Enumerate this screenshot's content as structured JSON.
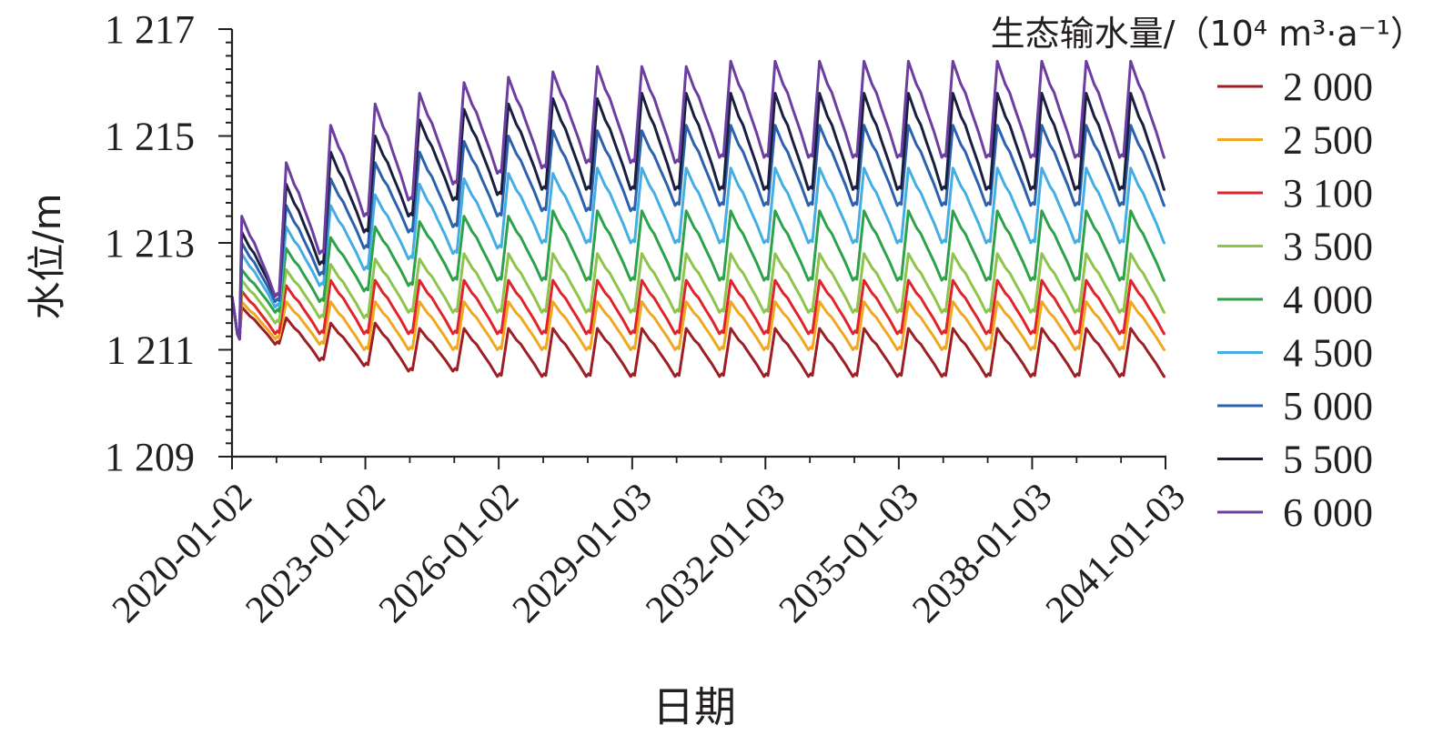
{
  "chart_data": {
    "type": "line",
    "xlabel": "日期",
    "ylabel": "水位/m",
    "legend_title": "生态输水量/（10⁴ m³·a⁻¹）",
    "legend_position": "right",
    "grid": false,
    "x_range": [
      "2020-01-02",
      "2041-01-03"
    ],
    "ylim": [
      1209,
      1217
    ],
    "x_ticks": [
      "2020-01-02",
      "2023-01-02",
      "2026-01-02",
      "2029-01-03",
      "2032-01-03",
      "2035-01-03",
      "2038-01-03",
      "2041-01-03"
    ],
    "y_ticks": [
      "1 209",
      "1 211",
      "1 213",
      "1 215",
      "1 217"
    ],
    "y_tick_values": [
      1209,
      1211,
      1213,
      1215,
      1217
    ],
    "start_level": 1212.0,
    "series": [
      {
        "name": "2 000",
        "color": "#9e1f23",
        "peak": [
          1211.8,
          1211.6,
          1211.5,
          1211.5,
          1211.4,
          1211.4,
          1211.4,
          1211.4,
          1211.4,
          1211.4,
          1211.4,
          1211.4,
          1211.4,
          1211.4,
          1211.4,
          1211.4,
          1211.4,
          1211.4,
          1211.4,
          1211.4,
          1211.4
        ],
        "trough": [
          1211.1,
          1210.8,
          1210.7,
          1210.6,
          1210.6,
          1210.5,
          1210.5,
          1210.5,
          1210.5,
          1210.5,
          1210.5,
          1210.5,
          1210.5,
          1210.5,
          1210.5,
          1210.5,
          1210.5,
          1210.5,
          1210.5,
          1210.5,
          1210.5
        ]
      },
      {
        "name": "2 500",
        "color": "#efa820",
        "peak": [
          1211.9,
          1211.9,
          1211.9,
          1211.9,
          1211.9,
          1211.9,
          1211.9,
          1211.9,
          1211.9,
          1211.9,
          1211.9,
          1211.9,
          1211.9,
          1211.9,
          1211.9,
          1211.9,
          1211.9,
          1211.9,
          1211.9,
          1211.9,
          1211.9
        ],
        "trough": [
          1211.2,
          1211.1,
          1211.0,
          1211.0,
          1211.0,
          1211.0,
          1211.0,
          1211.0,
          1211.0,
          1211.0,
          1211.0,
          1211.0,
          1211.0,
          1211.0,
          1211.0,
          1211.0,
          1211.0,
          1211.0,
          1211.0,
          1211.0,
          1211.0
        ]
      },
      {
        "name": "3 100",
        "color": "#e0242b",
        "peak": [
          1212.1,
          1212.2,
          1212.3,
          1212.3,
          1212.3,
          1212.3,
          1212.3,
          1212.3,
          1212.3,
          1212.3,
          1212.3,
          1212.3,
          1212.3,
          1212.3,
          1212.3,
          1212.3,
          1212.3,
          1212.3,
          1212.3,
          1212.3,
          1212.3
        ],
        "trough": [
          1211.3,
          1211.3,
          1211.3,
          1211.3,
          1211.3,
          1211.3,
          1211.3,
          1211.3,
          1211.3,
          1211.3,
          1211.3,
          1211.3,
          1211.3,
          1211.3,
          1211.3,
          1211.3,
          1211.3,
          1211.3,
          1211.3,
          1211.3,
          1211.3
        ]
      },
      {
        "name": "3 500",
        "color": "#8dc44c",
        "peak": [
          1212.3,
          1212.5,
          1212.6,
          1212.7,
          1212.7,
          1212.8,
          1212.8,
          1212.8,
          1212.8,
          1212.8,
          1212.8,
          1212.8,
          1212.8,
          1212.8,
          1212.8,
          1212.8,
          1212.8,
          1212.8,
          1212.8,
          1212.8,
          1212.8
        ],
        "trough": [
          1211.5,
          1211.6,
          1211.6,
          1211.7,
          1211.7,
          1211.7,
          1211.7,
          1211.7,
          1211.7,
          1211.7,
          1211.7,
          1211.7,
          1211.7,
          1211.7,
          1211.7,
          1211.7,
          1211.7,
          1211.7,
          1211.7,
          1211.7,
          1211.7
        ]
      },
      {
        "name": "4 000",
        "color": "#2ea24a",
        "peak": [
          1212.5,
          1212.9,
          1213.1,
          1213.3,
          1213.4,
          1213.5,
          1213.5,
          1213.6,
          1213.6,
          1213.6,
          1213.6,
          1213.6,
          1213.6,
          1213.6,
          1213.6,
          1213.6,
          1213.6,
          1213.6,
          1213.6,
          1213.6,
          1213.6
        ],
        "trough": [
          1211.7,
          1211.9,
          1212.1,
          1212.2,
          1212.3,
          1212.3,
          1212.3,
          1212.3,
          1212.3,
          1212.3,
          1212.3,
          1212.3,
          1212.3,
          1212.3,
          1212.3,
          1212.3,
          1212.3,
          1212.3,
          1212.3,
          1212.3,
          1212.3
        ]
      },
      {
        "name": "4 500",
        "color": "#44aee2",
        "peak": [
          1212.8,
          1213.3,
          1213.7,
          1213.9,
          1214.1,
          1214.2,
          1214.3,
          1214.3,
          1214.4,
          1214.4,
          1214.4,
          1214.4,
          1214.4,
          1214.4,
          1214.4,
          1214.4,
          1214.4,
          1214.4,
          1214.4,
          1214.4,
          1214.4
        ],
        "trough": [
          1211.8,
          1212.2,
          1212.5,
          1212.7,
          1212.8,
          1212.9,
          1213.0,
          1213.0,
          1213.0,
          1213.0,
          1213.0,
          1213.0,
          1213.0,
          1213.0,
          1213.0,
          1213.0,
          1213.0,
          1213.0,
          1213.0,
          1213.0,
          1213.0
        ]
      },
      {
        "name": "5 000",
        "color": "#2c62ad",
        "peak": [
          1213.0,
          1213.7,
          1214.2,
          1214.5,
          1214.7,
          1214.9,
          1215.0,
          1215.1,
          1215.1,
          1215.1,
          1215.2,
          1215.2,
          1215.2,
          1215.2,
          1215.2,
          1215.2,
          1215.2,
          1215.2,
          1215.2,
          1215.2,
          1215.2
        ],
        "trough": [
          1211.9,
          1212.4,
          1212.9,
          1213.2,
          1213.3,
          1213.5,
          1213.6,
          1213.6,
          1213.6,
          1213.7,
          1213.7,
          1213.7,
          1213.7,
          1213.7,
          1213.7,
          1213.7,
          1213.7,
          1213.7,
          1213.7,
          1213.7,
          1213.7
        ]
      },
      {
        "name": "5 500",
        "color": "#1a1f3f",
        "peak": [
          1213.2,
          1214.1,
          1214.7,
          1215.0,
          1215.3,
          1215.5,
          1215.6,
          1215.7,
          1215.7,
          1215.8,
          1215.8,
          1215.8,
          1215.8,
          1215.8,
          1215.8,
          1215.8,
          1215.8,
          1215.8,
          1215.8,
          1215.8,
          1215.8
        ],
        "trough": [
          1212.0,
          1212.6,
          1213.2,
          1213.5,
          1213.8,
          1213.9,
          1214.0,
          1214.0,
          1214.0,
          1214.0,
          1214.0,
          1214.0,
          1214.0,
          1214.0,
          1214.0,
          1214.0,
          1214.0,
          1214.0,
          1214.0,
          1214.0,
          1214.0
        ]
      },
      {
        "name": "6 000",
        "color": "#6b3ea0",
        "peak": [
          1213.5,
          1214.5,
          1215.2,
          1215.6,
          1215.8,
          1216.0,
          1216.1,
          1216.2,
          1216.3,
          1216.3,
          1216.3,
          1216.4,
          1216.4,
          1216.4,
          1216.4,
          1216.4,
          1216.4,
          1216.4,
          1216.4,
          1216.4,
          1216.4
        ],
        "trough": [
          1212.0,
          1212.8,
          1213.5,
          1213.8,
          1214.1,
          1214.3,
          1214.4,
          1214.5,
          1214.5,
          1214.5,
          1214.6,
          1214.6,
          1214.6,
          1214.6,
          1214.6,
          1214.6,
          1214.6,
          1214.6,
          1214.6,
          1214.6,
          1214.6
        ]
      }
    ]
  }
}
